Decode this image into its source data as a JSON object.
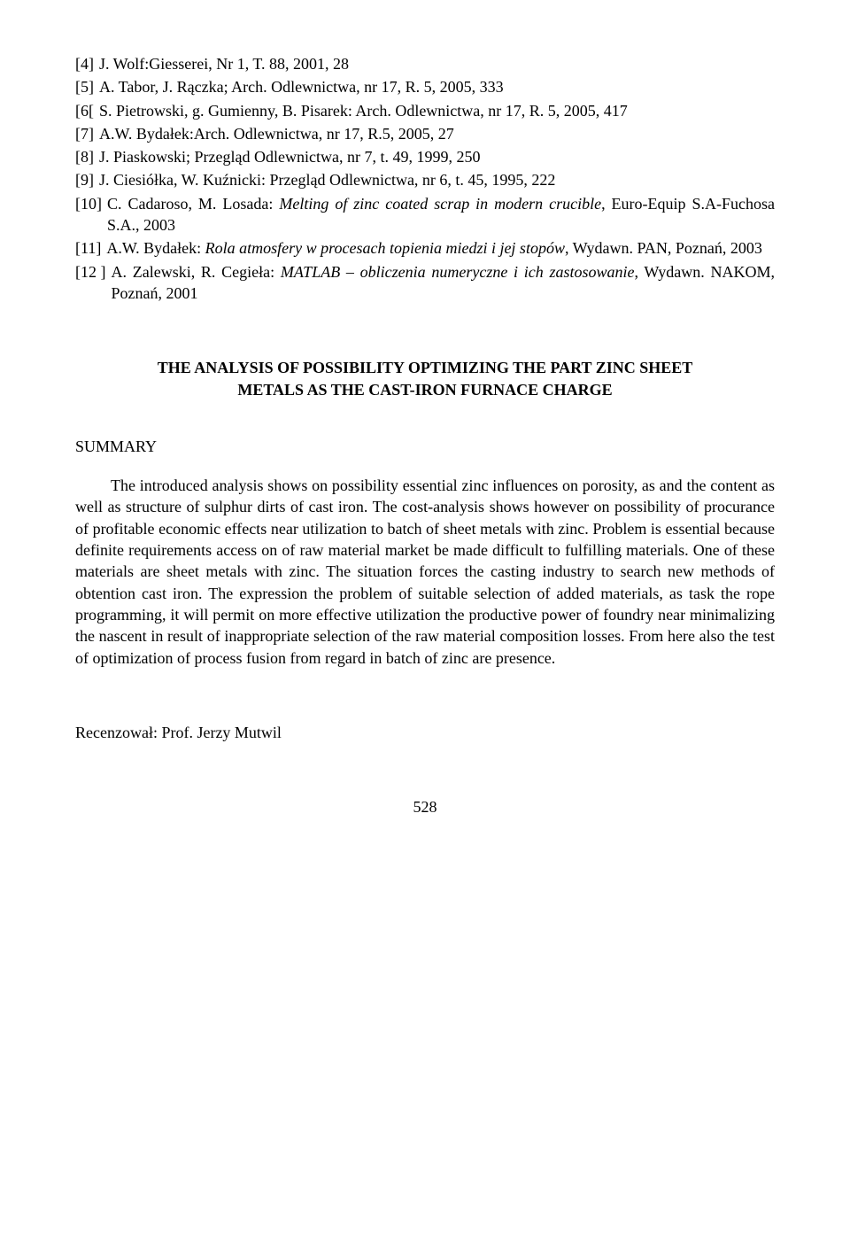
{
  "references": [
    {
      "label": "[4]",
      "text": "J. Wolf:Giesserei, Nr 1, T. 88, 2001, 28"
    },
    {
      "label": "[5]",
      "text": "A. Tabor, J. Rączka; Arch. Odlewnictwa, nr 17, R. 5, 2005, 333"
    },
    {
      "label": "[6[",
      "text": "S. Pietrowski, g. Gumienny, B. Pisarek: Arch. Odlewnictwa, nr 17, R. 5, 2005, 417"
    },
    {
      "label": "[7]",
      "text": "A.W. Bydałek:Arch. Odlewnictwa, nr 17, R.5, 2005, 27"
    },
    {
      "label": "[8]",
      "text": "J. Piaskowski; Przegląd Odlewnictwa, nr 7, t. 49, 1999, 250"
    },
    {
      "label": "[9]",
      "text": "J. Ciesiółka, W. Kuźnicki:  Przegląd Odlewnictwa, nr 6, t. 45, 1995, 222"
    },
    {
      "label": "[10]",
      "text_pre": "C. Cadaroso, M. Losada: ",
      "text_italic": "Melting of zinc coated scrap in modern crucible",
      "text_post": ", Euro-Equip S.A-Fuchosa S.A., 2003"
    },
    {
      "label": "[11]",
      "text_pre": "A.W. Bydałek: ",
      "text_italic": "Rola atmosfery w procesach topienia miedzi i jej stopów",
      "text_post": ", Wydawn. PAN, Poznań, 2003"
    },
    {
      "label": "[12 ]",
      "text_pre": "A. Zalewski, R. Cegieła: ",
      "text_italic": "MATLAB – obliczenia numeryczne i ich zastosowanie",
      "text_post": ", Wydawn. NAKOM, Poznań, 2001"
    }
  ],
  "section_title_line1": "THE ANALYSIS OF POSSIBILITY OPTIMIZING  THE PART ZINC SHEET",
  "section_title_line2": "METALS AS THE CAST-IRON FURNACE CHARGE",
  "summary_label": "SUMMARY",
  "summary_body": "The introduced analysis shows on possibility essential zinc influences on porosity, as and the content as well as structure of sulphur dirts of cast iron. The cost-analysis shows however on possibility of procurance of profitable economic effects near utilization to batch of sheet metals with zinc. Problem is  essential because definite requirements access on of raw material market be made difficult to fulfilling materials. One of these materials are sheet metals with zinc.  The situation forces the casting industry to search new methods of obtention cast iron. The expression the problem of suitable selection of added materials, as task the rope programming, it will permit on more effective utilization the productive power of foundry near minimalizing the nascent in result of inappropriate selection of the raw material composition losses. From here also the test of optimization of process fusion from regard in batch of zinc are presence.",
  "reviewer": "Recenzował: Prof. Jerzy Mutwil",
  "page_number": "528",
  "colors": {
    "text": "#000000",
    "background": "#ffffff"
  },
  "typography": {
    "font_family": "Times New Roman",
    "body_fontsize_pt": 13,
    "line_height": 1.35
  }
}
